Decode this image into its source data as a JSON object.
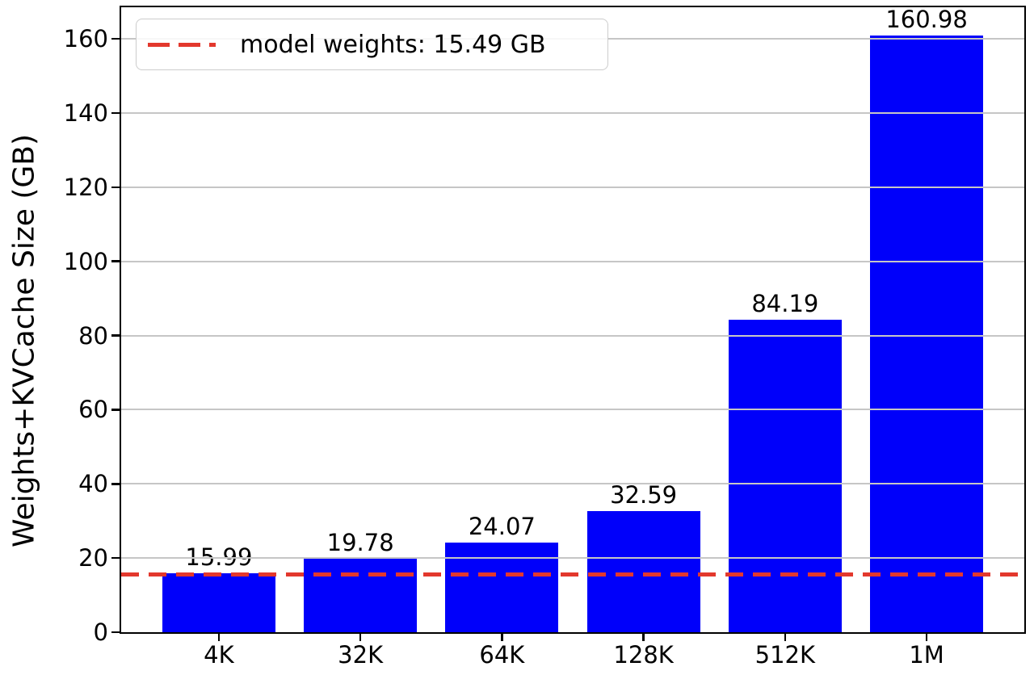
{
  "chart_data": {
    "type": "bar",
    "categories": [
      "4K",
      "32K",
      "64K",
      "128K",
      "512K",
      "1M"
    ],
    "values": [
      15.99,
      19.78,
      24.07,
      32.59,
      84.19,
      160.98
    ],
    "bar_value_labels": [
      "15.99",
      "19.78",
      "24.07",
      "32.59",
      "84.19",
      "160.98"
    ],
    "title": "",
    "xlabel": "",
    "ylabel": "Weights+KVCache Size (GB)",
    "ytick_labels": [
      "0",
      "20",
      "40",
      "60",
      "80",
      "100",
      "120",
      "140",
      "160"
    ],
    "yticks": [
      0,
      20,
      40,
      60,
      80,
      100,
      120,
      140,
      160
    ],
    "ylim": [
      0,
      168.5
    ],
    "xlim": [
      -0.69,
      5.69
    ],
    "bar_width_units": 0.8,
    "grid": {
      "axis": "y",
      "on": true,
      "above_bars": true
    },
    "legend": {
      "position": "upper left",
      "entries": [
        {
          "label": "model weights: 15.49 GB",
          "marker": "dashed-line-sample",
          "color": "#e3382d"
        }
      ]
    },
    "reference_line": {
      "y": 15.49,
      "style": "dashed",
      "color": "#e3382d"
    },
    "colors": {
      "bar": "#0000fa",
      "reference_line": "#e3382d",
      "grid": "#c6c6c6",
      "spine": "#000000",
      "text": "#000000",
      "legend_border": "#cccccc",
      "legend_bg": "rgba(255,255,255,0.85)"
    }
  }
}
